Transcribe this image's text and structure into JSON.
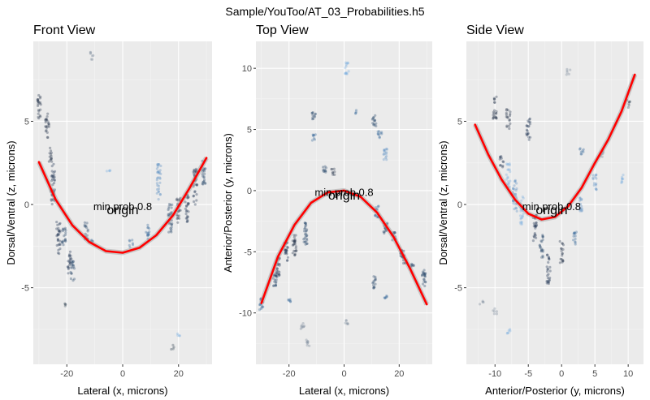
{
  "figure_title": "Sample/YouToo/AT_03_Probabilities.h5",
  "chart_data": [
    {
      "type": "scatter",
      "title": "Front View",
      "xlabel": "Lateral (x, microns)",
      "ylabel": "Dorsal/Ventral (z, microns)",
      "xlim": [
        -32,
        32
      ],
      "ylim": [
        -9.6,
        9.8
      ],
      "xticks": [
        -20,
        0,
        20
      ],
      "xtick_labels": [
        "-20",
        "0",
        "20"
      ],
      "yticks": [
        -5,
        0,
        5
      ],
      "yticks_labels": [
        "-5",
        "0",
        "5"
      ],
      "grid": true,
      "annotations": [
        {
          "text": "origin",
          "x": 0,
          "y": -0.2
        },
        {
          "text": "min prob 0.8",
          "x": 0,
          "y": -0.1
        }
      ],
      "fit_curve": {
        "color": "#ff0000",
        "points": [
          [
            -30,
            2.55
          ],
          [
            -24,
            0.3
          ],
          [
            -18,
            -1.25
          ],
          [
            -12,
            -2.25
          ],
          [
            -6,
            -2.8
          ],
          [
            0,
            -2.9
          ],
          [
            6,
            -2.6
          ],
          [
            12,
            -1.85
          ],
          [
            18,
            -0.65
          ],
          [
            24,
            1.0
          ],
          [
            30,
            2.8
          ]
        ]
      },
      "point_clusters": [
        {
          "x": -30,
          "y_min": 5.0,
          "y_max": 6.6,
          "color": "#26344a"
        },
        {
          "x": -27,
          "y_min": 4.0,
          "y_max": 5.6,
          "color": "#26344a"
        },
        {
          "x": -26,
          "y_min": 2.5,
          "y_max": 3.4,
          "color": "#26344a"
        },
        {
          "x": -25,
          "y_min": 0.0,
          "y_max": 2.5,
          "color": "#1f3552"
        },
        {
          "x": -23,
          "y_min": -3.0,
          "y_max": -1.0,
          "color": "#1f3552"
        },
        {
          "x": -21,
          "y_min": -2.5,
          "y_max": -1.2,
          "color": "#2a4a6e"
        },
        {
          "x": -19,
          "y_min": -4.2,
          "y_max": -2.8,
          "color": "#1f3552"
        },
        {
          "x": -18,
          "y_min": -4.6,
          "y_max": -3.4,
          "color": "#2a4a6e"
        },
        {
          "x": -13,
          "y_min": -2.1,
          "y_max": -0.9,
          "color": "#2a4a6e"
        },
        {
          "x": -11,
          "y_min": -2.3,
          "y_max": -1.9,
          "color": "#3a6a9a"
        },
        {
          "x": 3,
          "y_min": -2.6,
          "y_max": -2.1,
          "color": "#3a6a9a"
        },
        {
          "x": 9,
          "y_min": -2.2,
          "y_max": -1.2,
          "color": "#3a6a9a"
        },
        {
          "x": 13,
          "y_min": 0.3,
          "y_max": 2.5,
          "color": "#5b8fc4"
        },
        {
          "x": 17,
          "y_min": -1.8,
          "y_max": 0.2,
          "color": "#2a4a6e"
        },
        {
          "x": 20,
          "y_min": -1.1,
          "y_max": 0.4,
          "color": "#26344a"
        },
        {
          "x": 23,
          "y_min": -1.2,
          "y_max": 0.6,
          "color": "#1f3552"
        },
        {
          "x": 26,
          "y_min": 0.0,
          "y_max": 2.2,
          "color": "#1f3552"
        },
        {
          "x": 29,
          "y_min": 1.2,
          "y_max": 2.8,
          "color": "#2a4a6e"
        },
        {
          "x": -11,
          "y_min": 8.7,
          "y_max": 9.2,
          "color": "#7a8a9a"
        },
        {
          "x": -5,
          "y_min": 1.9,
          "y_max": 2.1,
          "color": "#7ab0e0"
        },
        {
          "x": -20,
          "y_min": -6.1,
          "y_max": -5.9,
          "color": "#3a4a5a"
        },
        {
          "x": 18,
          "y_min": -8.7,
          "y_max": -8.4,
          "color": "#3a4a5a"
        },
        {
          "x": 20,
          "y_min": -7.9,
          "y_max": -7.7,
          "color": "#7ab0e0"
        }
      ]
    },
    {
      "type": "scatter",
      "title": "Top View",
      "xlabel": "Lateral (x, microns)",
      "ylabel": "Anterior/Posterior (y, microns)",
      "xlim": [
        -32,
        32
      ],
      "ylim": [
        -14.2,
        12.2
      ],
      "xticks": [
        -20,
        0,
        20
      ],
      "xtick_labels": [
        "-20",
        "0",
        "20"
      ],
      "yticks": [
        -10,
        -5,
        0,
        5,
        10
      ],
      "yticks_labels": [
        "-10",
        "-5",
        "0",
        "5",
        "10"
      ],
      "grid": true,
      "annotations": [
        {
          "text": "origin",
          "x": 0,
          "y": -0.2
        },
        {
          "text": "min prob 0.8",
          "x": 0,
          "y": -0.1
        }
      ],
      "fit_curve": {
        "color": "#ff0000",
        "points": [
          [
            -30,
            -9.2
          ],
          [
            -24,
            -5.4
          ],
          [
            -18,
            -2.8
          ],
          [
            -12,
            -1.0
          ],
          [
            -6,
            -0.15
          ],
          [
            0,
            0.0
          ],
          [
            6,
            -0.5
          ],
          [
            12,
            -1.8
          ],
          [
            18,
            -3.8
          ],
          [
            24,
            -6.4
          ],
          [
            30,
            -9.3
          ]
        ]
      },
      "point_clusters": [
        {
          "x": -30,
          "y_min": -9.8,
          "y_max": -8.8,
          "color": "#3a6a9a"
        },
        {
          "x": -25,
          "y_min": -8.0,
          "y_max": -6.8,
          "color": "#2a4a6e"
        },
        {
          "x": -24,
          "y_min": -7.0,
          "y_max": -5.5,
          "color": "#1f3552"
        },
        {
          "x": -21,
          "y_min": -5.8,
          "y_max": -4.2,
          "color": "#1f3552"
        },
        {
          "x": -18,
          "y_min": -5.3,
          "y_max": -3.5,
          "color": "#26344a"
        },
        {
          "x": -14,
          "y_min": -4.4,
          "y_max": -2.5,
          "color": "#2a4a6e"
        },
        {
          "x": -11,
          "y_min": 5.8,
          "y_max": 6.6,
          "color": "#2a4a6e"
        },
        {
          "x": -11,
          "y_min": 4.0,
          "y_max": 4.6,
          "color": "#3a6a9a"
        },
        {
          "x": -7,
          "y_min": 1.3,
          "y_max": 2.0,
          "color": "#2a4a6e"
        },
        {
          "x": -4,
          "y_min": 1.2,
          "y_max": 1.8,
          "color": "#26344a"
        },
        {
          "x": 1,
          "y_min": 9.5,
          "y_max": 10.5,
          "color": "#7ab0e0"
        },
        {
          "x": 4,
          "y_min": 6.3,
          "y_max": 6.6,
          "color": "#3a6a9a"
        },
        {
          "x": 11,
          "y_min": 5.2,
          "y_max": 6.2,
          "color": "#2a4a6e"
        },
        {
          "x": 13,
          "y_min": 4.2,
          "y_max": 4.9,
          "color": "#3a6a9a"
        },
        {
          "x": 15,
          "y_min": 2.5,
          "y_max": 3.5,
          "color": "#5b8fc4"
        },
        {
          "x": 12,
          "y_min": -2.2,
          "y_max": -1.2,
          "color": "#3a6a9a"
        },
        {
          "x": 15,
          "y_min": -3.5,
          "y_max": -2.5,
          "color": "#2a4a6e"
        },
        {
          "x": 18,
          "y_min": -4.2,
          "y_max": -3.4,
          "color": "#2a4a6e"
        },
        {
          "x": 21,
          "y_min": -5.5,
          "y_max": -4.6,
          "color": "#1f3552"
        },
        {
          "x": 22,
          "y_min": -6.0,
          "y_max": -5.3,
          "color": "#1f3552"
        },
        {
          "x": 25,
          "y_min": -6.5,
          "y_max": -6.0,
          "color": "#2a4a6e"
        },
        {
          "x": 29,
          "y_min": -8.0,
          "y_max": -6.5,
          "color": "#2a4a6e"
        },
        {
          "x": 11,
          "y_min": -8.0,
          "y_max": -7.0,
          "color": "#2a4a6e"
        },
        {
          "x": 15,
          "y_min": -9.0,
          "y_max": -8.6,
          "color": "#3a6a9a"
        },
        {
          "x": -20,
          "y_min": -9.2,
          "y_max": -8.8,
          "color": "#3a6a9a"
        },
        {
          "x": -15,
          "y_min": -11.3,
          "y_max": -10.7,
          "color": "#7a8a9a"
        },
        {
          "x": -13,
          "y_min": -12.8,
          "y_max": -12.2,
          "color": "#7a8a9a"
        },
        {
          "x": 1,
          "y_min": -11.0,
          "y_max": -10.6,
          "color": "#7a8a9a"
        }
      ]
    },
    {
      "type": "scatter",
      "title": "Side View",
      "xlabel": "Anterior/Posterior (y, microns)",
      "ylabel": "Dorsal/Ventral (z, microns)",
      "xlim": [
        -14.3,
        12.3
      ],
      "ylim": [
        -9.6,
        9.8
      ],
      "xticks": [
        -10,
        -5,
        0,
        5,
        10
      ],
      "xtick_labels": [
        "-10",
        "-5",
        "0",
        "5",
        "10"
      ],
      "yticks": [
        -5,
        0,
        5
      ],
      "yticks_labels": [
        "-5",
        "0",
        "5"
      ],
      "grid": true,
      "annotations": [
        {
          "text": "origin",
          "x": -1.5,
          "y": -0.2
        },
        {
          "text": "min prob 0.8",
          "x": -1.5,
          "y": -0.1
        }
      ],
      "fit_curve": {
        "color": "#ff0000",
        "points": [
          [
            -13,
            4.8
          ],
          [
            -11,
            3.0
          ],
          [
            -9,
            1.5
          ],
          [
            -7,
            0.3
          ],
          [
            -5,
            -0.55
          ],
          [
            -3,
            -0.9
          ],
          [
            -1,
            -0.75
          ],
          [
            1,
            -0.1
          ],
          [
            3,
            1.0
          ],
          [
            5,
            2.5
          ],
          [
            7,
            3.9
          ],
          [
            9,
            5.6
          ],
          [
            11,
            7.8
          ]
        ]
      },
      "point_clusters": [
        {
          "x": -10,
          "y_min": 5.0,
          "y_max": 6.5,
          "color": "#26344a"
        },
        {
          "x": -8,
          "y_min": 4.5,
          "y_max": 5.8,
          "color": "#26344a"
        },
        {
          "x": -5,
          "y_min": 3.8,
          "y_max": 5.2,
          "color": "#1f3552"
        },
        {
          "x": -9,
          "y_min": 2.2,
          "y_max": 3.0,
          "color": "#1f3552"
        },
        {
          "x": -8,
          "y_min": 1.0,
          "y_max": 2.5,
          "color": "#7ab0e0"
        },
        {
          "x": -7,
          "y_min": -0.5,
          "y_max": 1.5,
          "color": "#5b8fc4"
        },
        {
          "x": -6,
          "y_min": -1.2,
          "y_max": 0.5,
          "color": "#7ab0e0"
        },
        {
          "x": -4,
          "y_min": -2.2,
          "y_max": -0.5,
          "color": "#1f3552"
        },
        {
          "x": -3,
          "y_min": -3.2,
          "y_max": -1.8,
          "color": "#2a4a6e"
        },
        {
          "x": -2,
          "y_min": -4.8,
          "y_max": -3.0,
          "color": "#1f3552"
        },
        {
          "x": 0,
          "y_min": -3.5,
          "y_max": -2.2,
          "color": "#26344a"
        },
        {
          "x": 2,
          "y_min": -2.4,
          "y_max": -1.5,
          "color": "#3a6a9a"
        },
        {
          "x": 3,
          "y_min": -0.5,
          "y_max": 0.5,
          "color": "#5b8fc4"
        },
        {
          "x": 5,
          "y_min": 0.8,
          "y_max": 1.8,
          "color": "#5b8fc4"
        },
        {
          "x": 6,
          "y_min": 2.8,
          "y_max": 3.4,
          "color": "#7a8a9a"
        },
        {
          "x": 3,
          "y_min": 3.0,
          "y_max": 3.6,
          "color": "#3a6a9a"
        },
        {
          "x": 9,
          "y_min": 1.3,
          "y_max": 1.9,
          "color": "#7ab0e0"
        },
        {
          "x": 10,
          "y_min": 5.8,
          "y_max": 6.3,
          "color": "#3a4a5a"
        },
        {
          "x": -12,
          "y_min": -6.0,
          "y_max": -5.8,
          "color": "#7a8a9a"
        },
        {
          "x": -8,
          "y_min": -7.8,
          "y_max": -7.4,
          "color": "#7ab0e0"
        },
        {
          "x": -10,
          "y_min": -6.6,
          "y_max": -6.2,
          "color": "#7a8a9a"
        },
        {
          "x": 1,
          "y_min": 7.8,
          "y_max": 8.2,
          "color": "#7a8a9a"
        }
      ]
    }
  ]
}
